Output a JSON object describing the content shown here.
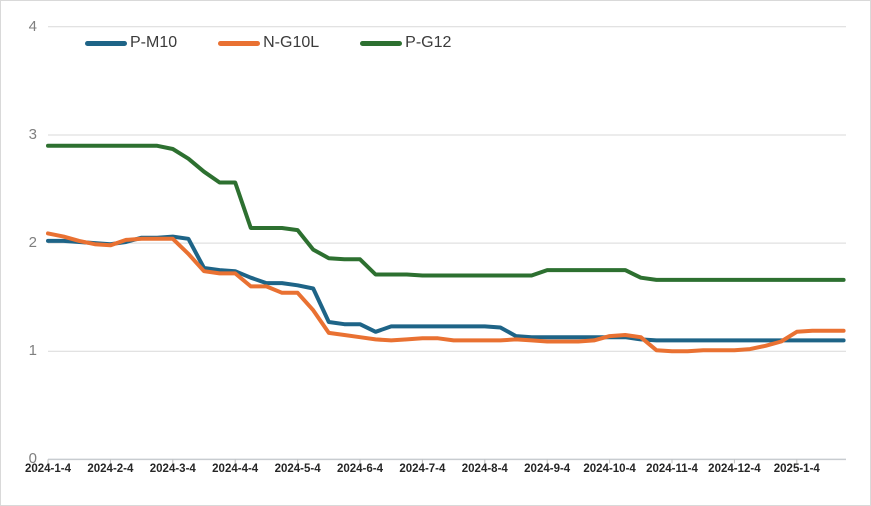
{
  "chart_data": {
    "type": "line",
    "title": "",
    "xlabel": "",
    "ylabel": "",
    "ylim": [
      0,
      4
    ],
    "y_ticks": [
      0,
      1,
      2,
      3,
      4
    ],
    "grid": "horizontal",
    "legend_position": "top-left",
    "n_points": 52,
    "points_per_tick": 4,
    "x_tick_labels": [
      "2024-1-4",
      "2024-2-4",
      "2024-3-4",
      "2024-4-4",
      "2024-5-4",
      "2024-6-4",
      "2024-7-4",
      "2024-8-4",
      "2024-9-4",
      "2024-10-4",
      "2024-11-4",
      "2024-12-4",
      "2025-1-4"
    ],
    "series": [
      {
        "name": "P-M10",
        "color": "#1E6487",
        "values": [
          2.02,
          2.02,
          2.01,
          2.0,
          1.99,
          2.01,
          2.05,
          2.05,
          2.06,
          2.04,
          1.77,
          1.75,
          1.74,
          1.68,
          1.63,
          1.63,
          1.61,
          1.58,
          1.27,
          1.25,
          1.25,
          1.18,
          1.23,
          1.23,
          1.23,
          1.23,
          1.23,
          1.23,
          1.23,
          1.22,
          1.14,
          1.13,
          1.13,
          1.13,
          1.13,
          1.13,
          1.13,
          1.13,
          1.11,
          1.1,
          1.1,
          1.1,
          1.1,
          1.1,
          1.1,
          1.1,
          1.1,
          1.1,
          1.1,
          1.1,
          1.1,
          1.1
        ]
      },
      {
        "name": "N-G10L",
        "color": "#E97132",
        "values": [
          2.09,
          2.06,
          2.02,
          1.99,
          1.98,
          2.03,
          2.04,
          2.04,
          2.04,
          1.9,
          1.74,
          1.72,
          1.72,
          1.6,
          1.6,
          1.54,
          1.54,
          1.38,
          1.17,
          1.15,
          1.13,
          1.11,
          1.1,
          1.11,
          1.12,
          1.12,
          1.1,
          1.1,
          1.1,
          1.1,
          1.11,
          1.1,
          1.09,
          1.09,
          1.09,
          1.1,
          1.14,
          1.15,
          1.13,
          1.01,
          1.0,
          1.0,
          1.01,
          1.01,
          1.01,
          1.02,
          1.05,
          1.09,
          1.18,
          1.19,
          1.19,
          1.19
        ]
      },
      {
        "name": "P-G12",
        "color": "#2D7030",
        "values": [
          2.9,
          2.9,
          2.9,
          2.9,
          2.9,
          2.9,
          2.9,
          2.9,
          2.87,
          2.78,
          2.66,
          2.56,
          2.56,
          2.14,
          2.14,
          2.14,
          2.12,
          1.94,
          1.86,
          1.85,
          1.85,
          1.71,
          1.71,
          1.71,
          1.7,
          1.7,
          1.7,
          1.7,
          1.7,
          1.7,
          1.7,
          1.7,
          1.75,
          1.75,
          1.75,
          1.75,
          1.75,
          1.75,
          1.68,
          1.66,
          1.66,
          1.66,
          1.66,
          1.66,
          1.66,
          1.66,
          1.66,
          1.66,
          1.66,
          1.66,
          1.66,
          1.66
        ]
      }
    ]
  },
  "legend": {
    "items": [
      {
        "label": "P-M10"
      },
      {
        "label": "N-G10L"
      },
      {
        "label": "P-G12"
      }
    ]
  },
  "colors": {
    "background": "#FFFFFF",
    "border": "#D9D9D9",
    "grid": "#D9D9D9",
    "axis": "#C8CCD0",
    "tick": "#BFBFBF",
    "x_label": "#262626",
    "y_label": "#7F7F7F"
  }
}
